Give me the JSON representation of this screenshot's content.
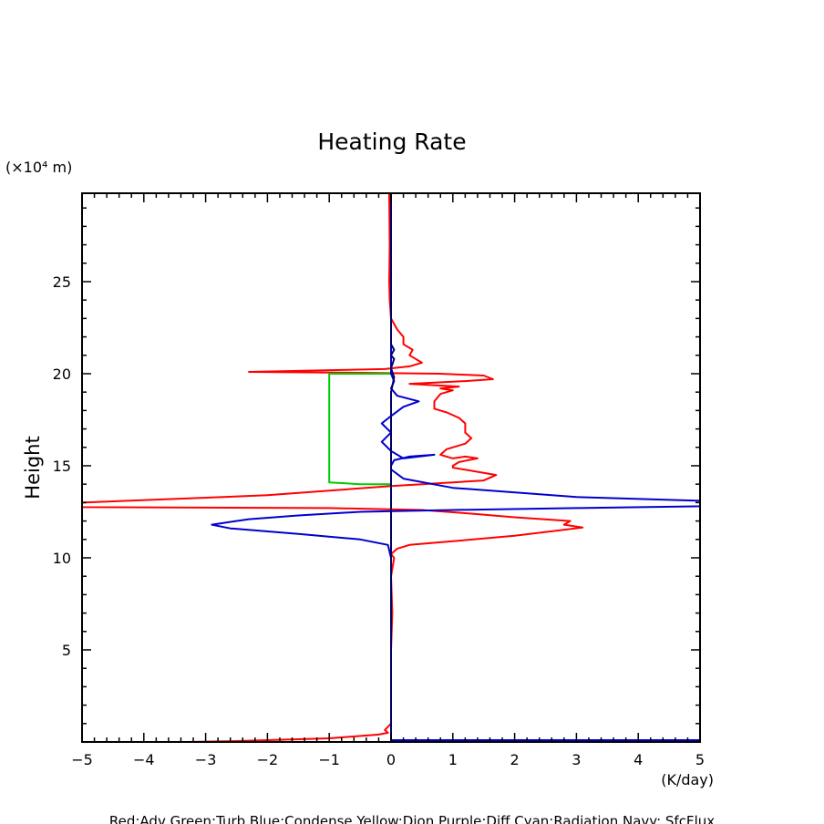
{
  "chart_data": {
    "type": "line",
    "title": "Heating Rate",
    "ylabel": "Height",
    "yunit": "(×10⁴ m)",
    "xunit": "(K/day)",
    "xlim": [
      -5,
      5
    ],
    "ylim": [
      0,
      29.8
    ],
    "xticks": [
      "−5",
      "−4",
      "−3",
      "−2",
      "−1",
      "0",
      "1",
      "2",
      "3",
      "4",
      "5"
    ],
    "yticks": [
      "5",
      "10",
      "15",
      "20",
      "25"
    ],
    "footer": "Red:Adv  Green:Turb  Blue:Condense  Yellow:Dion  Purple:Diff  Cyan:Radiation  Navy: SfcFlux",
    "series": [
      {
        "name": "Adv",
        "color": "#ff0000",
        "points": [
          [
            -3.3,
            0.0
          ],
          [
            -2.5,
            0.05
          ],
          [
            -2.0,
            0.1
          ],
          [
            -1.0,
            0.2
          ],
          [
            -0.2,
            0.4
          ],
          [
            -0.05,
            0.5
          ],
          [
            -0.1,
            0.65
          ],
          [
            0.0,
            1.0
          ],
          [
            0.0,
            5.0
          ],
          [
            0.02,
            7.0
          ],
          [
            0.0,
            9.0
          ],
          [
            0.05,
            10.0
          ],
          [
            0.0,
            10.2
          ],
          [
            0.1,
            10.5
          ],
          [
            0.3,
            10.7
          ],
          [
            1.0,
            10.9
          ],
          [
            2.0,
            11.2
          ],
          [
            3.1,
            11.65
          ],
          [
            2.8,
            11.8
          ],
          [
            2.9,
            12.0
          ],
          [
            2.0,
            12.2
          ],
          [
            1.3,
            12.4
          ],
          [
            0.5,
            12.6
          ],
          [
            -1.0,
            12.7
          ],
          [
            -5.0,
            12.75
          ],
          [
            -5.0,
            13.0
          ],
          [
            -2.0,
            13.4
          ],
          [
            0.0,
            13.9
          ],
          [
            1.0,
            14.1
          ],
          [
            1.5,
            14.2
          ],
          [
            1.7,
            14.5
          ],
          [
            1.0,
            14.9
          ],
          [
            1.0,
            15.0
          ],
          [
            1.1,
            15.2
          ],
          [
            1.4,
            15.4
          ],
          [
            1.2,
            15.5
          ],
          [
            1.0,
            15.4
          ],
          [
            0.8,
            15.6
          ],
          [
            0.9,
            15.9
          ],
          [
            1.2,
            16.2
          ],
          [
            1.3,
            16.5
          ],
          [
            1.2,
            16.8
          ],
          [
            1.2,
            17.3
          ],
          [
            1.1,
            17.6
          ],
          [
            0.9,
            17.9
          ],
          [
            0.7,
            18.1
          ],
          [
            0.7,
            18.5
          ],
          [
            0.8,
            18.9
          ],
          [
            1.0,
            19.1
          ],
          [
            0.8,
            19.2
          ],
          [
            1.1,
            19.3
          ],
          [
            0.3,
            19.45
          ],
          [
            1.2,
            19.6
          ],
          [
            1.65,
            19.7
          ],
          [
            1.5,
            19.9
          ],
          [
            0.8,
            20.0
          ],
          [
            -0.5,
            20.05
          ],
          [
            -2.3,
            20.1
          ],
          [
            -0.8,
            20.2
          ],
          [
            -0.1,
            20.25
          ],
          [
            0.3,
            20.4
          ],
          [
            0.5,
            20.6
          ],
          [
            0.4,
            20.8
          ],
          [
            0.3,
            21.0
          ],
          [
            0.35,
            21.3
          ],
          [
            0.2,
            21.6
          ],
          [
            0.2,
            22.0
          ],
          [
            0.1,
            22.4
          ],
          [
            0.0,
            23.0
          ],
          [
            -0.02,
            24.0
          ],
          [
            -0.03,
            25.0
          ],
          [
            -0.02,
            27.0
          ],
          [
            -0.03,
            29.8
          ]
        ]
      },
      {
        "name": "Turb",
        "color": "#00cc00",
        "points": [
          [
            0.0,
            20.0
          ],
          [
            -1.0,
            20.0
          ],
          [
            -1.0,
            14.1
          ],
          [
            -0.5,
            14.0
          ],
          [
            0.0,
            14.0
          ]
        ]
      },
      {
        "name": "Condense",
        "color": "#0000cc",
        "points": [
          [
            0.0,
            0.0
          ],
          [
            0.0,
            0.1
          ],
          [
            3.0,
            0.1
          ],
          [
            5.0,
            0.1
          ],
          [
            0.0,
            0.1
          ],
          [
            0.0,
            10.0
          ],
          [
            -0.05,
            10.7
          ],
          [
            -0.5,
            11.0
          ],
          [
            -1.5,
            11.3
          ],
          [
            -2.6,
            11.6
          ],
          [
            -2.9,
            11.8
          ],
          [
            -2.3,
            12.1
          ],
          [
            -1.5,
            12.3
          ],
          [
            -0.5,
            12.5
          ],
          [
            1.0,
            12.6
          ],
          [
            3.0,
            12.7
          ],
          [
            5.0,
            12.8
          ],
          [
            5.0,
            13.1
          ],
          [
            3.0,
            13.3
          ],
          [
            1.0,
            13.8
          ],
          [
            0.2,
            14.3
          ],
          [
            0.0,
            14.8
          ],
          [
            0.0,
            15.0
          ],
          [
            0.05,
            15.3
          ],
          [
            0.3,
            15.5
          ],
          [
            0.7,
            15.6
          ],
          [
            0.2,
            15.4
          ],
          [
            0.0,
            15.8
          ],
          [
            -0.15,
            16.3
          ],
          [
            0.0,
            16.8
          ],
          [
            -0.15,
            17.3
          ],
          [
            0.0,
            17.7
          ],
          [
            0.2,
            18.2
          ],
          [
            0.45,
            18.5
          ],
          [
            0.1,
            18.8
          ],
          [
            0.0,
            19.2
          ],
          [
            0.05,
            19.6
          ],
          [
            0.0,
            20.0
          ],
          [
            0.0,
            29.8
          ]
        ]
      },
      {
        "name": "SfcFlux",
        "color": "#000066",
        "points": [
          [
            0.0,
            0.0
          ],
          [
            0.0,
            19.0
          ],
          [
            0.05,
            19.8
          ],
          [
            0.0,
            20.3
          ],
          [
            0.05,
            20.8
          ],
          [
            0.0,
            21.0
          ],
          [
            0.05,
            21.3
          ],
          [
            0.0,
            21.6
          ],
          [
            0.0,
            29.8
          ]
        ]
      }
    ]
  }
}
